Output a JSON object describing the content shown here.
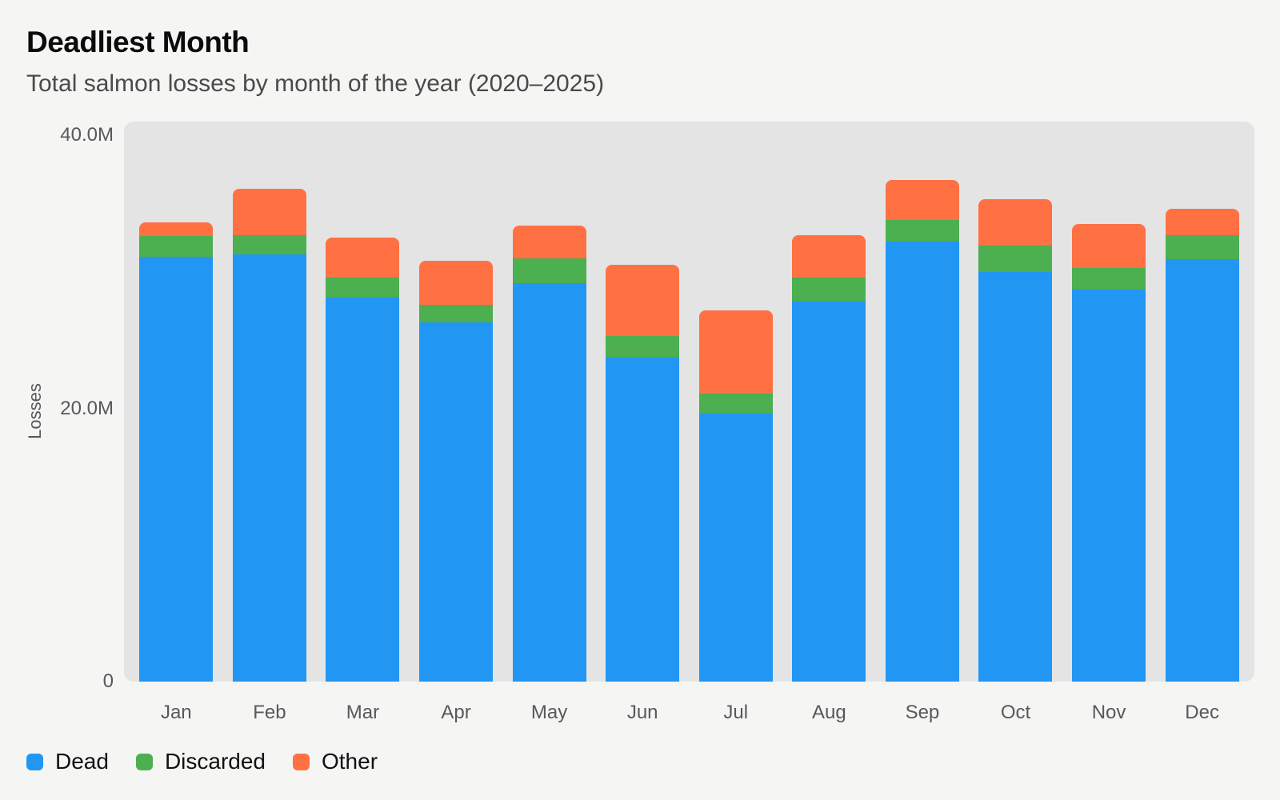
{
  "chart_data": {
    "type": "bar",
    "stacked": true,
    "title": "Deadliest Month",
    "subtitle": "Total salmon losses by month of the year (2020–2025)",
    "ylabel": "Losses",
    "unit": "millions",
    "ylim": [
      0,
      41
    ],
    "grid": false,
    "legend_position": "bottom-left",
    "background": "#F5F5F4",
    "plot_background": "#E4E4E4",
    "categories": [
      "Jan",
      "Feb",
      "Mar",
      "Apr",
      "May",
      "Jun",
      "Jul",
      "Aug",
      "Sep",
      "Oct",
      "Nov",
      "Dec"
    ],
    "yticks": [
      {
        "value": 0,
        "label": "0"
      },
      {
        "value": 20,
        "label": "20.0M"
      },
      {
        "value": 40,
        "label": "40.0M"
      }
    ],
    "series": [
      {
        "name": "Dead",
        "color": "#2196F3",
        "values": [
          31.1,
          31.3,
          28.1,
          26.3,
          29.2,
          23.7,
          19.6,
          27.8,
          32.2,
          30.0,
          28.7,
          30.9
        ]
      },
      {
        "name": "Discarded",
        "color": "#4CAF50",
        "values": [
          1.5,
          1.4,
          1.5,
          1.3,
          1.8,
          1.6,
          1.5,
          1.8,
          1.6,
          1.9,
          1.6,
          1.8
        ]
      },
      {
        "name": "Other",
        "color": "#FF7043",
        "values": [
          1.0,
          3.4,
          2.9,
          3.2,
          2.4,
          5.2,
          6.1,
          3.1,
          2.9,
          3.4,
          3.2,
          1.9
        ]
      }
    ],
    "totals": [
      33.6,
      36.1,
      32.5,
      30.8,
      33.4,
      30.5,
      27.2,
      32.7,
      36.7,
      35.3,
      33.5,
      34.6
    ]
  }
}
